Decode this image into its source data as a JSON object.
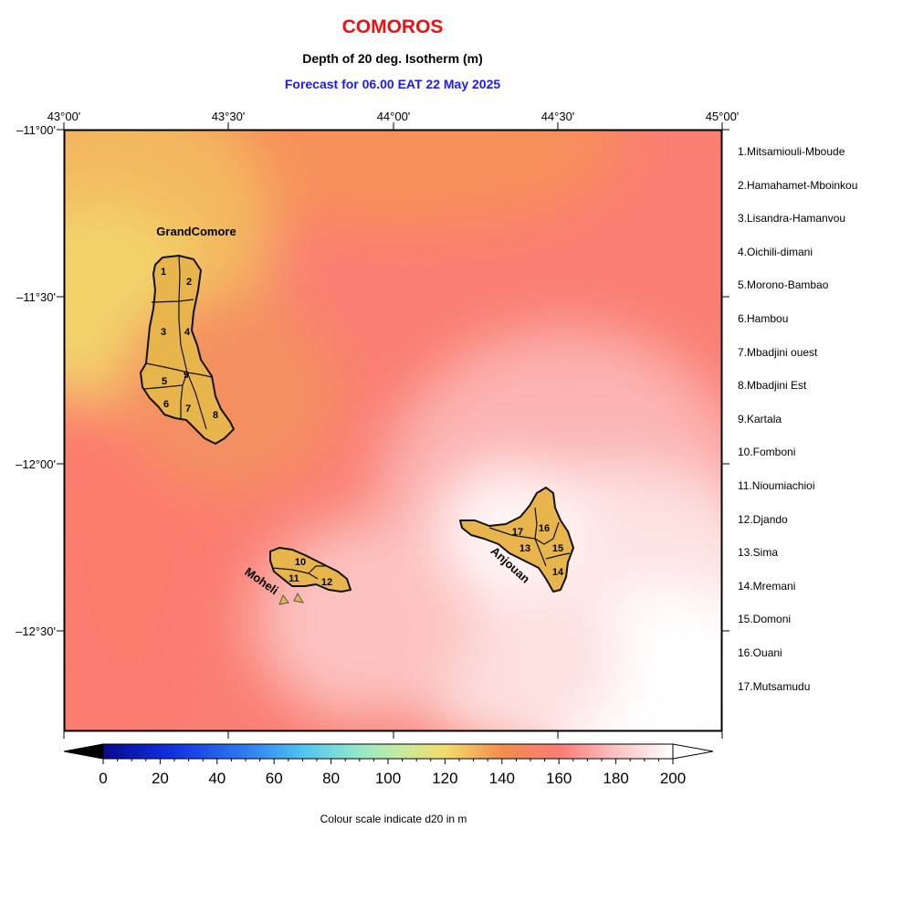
{
  "header": {
    "country": "COMOROS",
    "subtitle": "Depth of 20 deg. Isotherm (m)",
    "forecast": "Forecast for  06.00 EAT 22 May 2025"
  },
  "colors": {
    "country_title": "#ee1111",
    "forecast_text": "#1a1aff",
    "land_fill": "#e8b44c",
    "boundary": "#111111"
  },
  "map": {
    "lon_ticks": [
      "43°00'",
      "43°30'",
      "44°00'",
      "44°30'",
      "45°00'"
    ],
    "lat_ticks": [
      "–11°00'",
      "–11°30'",
      "–12°00'",
      "–12°30'"
    ],
    "island_labels": {
      "grand_comore": "GrandComore",
      "moheli": "Moheli",
      "anjouan": "Anjouan"
    },
    "region_numbers": [
      "1",
      "2",
      "3",
      "4",
      "5",
      "6",
      "7",
      "8",
      "9",
      "10",
      "11",
      "12",
      "13",
      "14",
      "15",
      "16",
      "17"
    ],
    "legend": [
      "1.Mitsamiouli-Mboude",
      "2.Hamahamet-Mboinkou",
      "3.Lisandra-Hamanvou",
      "4.Oichili-dimani",
      "5.Morono-Bambao",
      "6.Hambou",
      "7.Mbadjini ouest",
      "8.Mbadjini Est",
      "9.Kartala",
      "10.Fomboni",
      "11.Nioumiachioi",
      "12.Djando",
      "13.Sima",
      "14.Mremani",
      "15.Domoni",
      "16.Ouani",
      "17.Mutsamudu"
    ]
  },
  "colorbar": {
    "tick_labels": [
      "0",
      "20",
      "40",
      "60",
      "80",
      "100",
      "120",
      "140",
      "160",
      "180",
      "200"
    ],
    "caption": "Colour scale indicate d20 in m",
    "range": [
      0,
      200
    ]
  }
}
